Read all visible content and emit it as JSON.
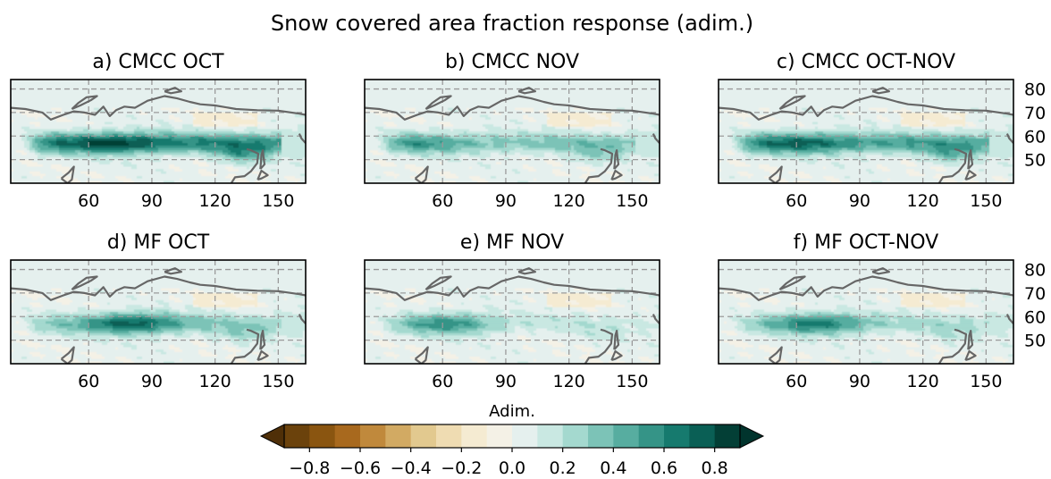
{
  "figure": {
    "title": "Snow covered area fraction response (adim.)"
  },
  "chart_data": {
    "type": "heatmap",
    "variable": "Snow covered area fraction response",
    "units": "adim.",
    "x_ticks": [
      "60",
      "90",
      "120",
      "150"
    ],
    "y_ticks": [
      "80",
      "70",
      "60",
      "50"
    ],
    "lon_range": [
      23,
      163
    ],
    "lat_range": [
      40,
      84
    ],
    "panels": [
      {
        "label": "a) CMCC OCT",
        "peak": 0.85,
        "peak_lon": 72,
        "belt": 0.55
      },
      {
        "label": "b) CMCC NOV",
        "peak": 0.5,
        "peak_lon": 50,
        "belt": 0.3
      },
      {
        "label": "c) CMCC OCT-NOV",
        "peak": 0.72,
        "peak_lon": 62,
        "belt": 0.45
      },
      {
        "label": "d) MF OCT",
        "peak": 0.75,
        "peak_lon": 80,
        "belt": 0.25
      },
      {
        "label": "e) MF NOV",
        "peak": 0.55,
        "peak_lon": 62,
        "belt": 0.12
      },
      {
        "label": "f) MF OCT-NOV",
        "peak": 0.65,
        "peak_lon": 70,
        "belt": 0.18
      }
    ],
    "colorbar": {
      "label": "Adim.",
      "min": -0.9,
      "max": 0.9,
      "step": 0.1,
      "tick_labels": [
        "−0.8",
        "−0.6",
        "−0.4",
        "−0.2",
        "0.0",
        "0.2",
        "0.4",
        "0.6",
        "0.8"
      ],
      "tick_values": [
        -0.8,
        -0.6,
        -0.4,
        -0.2,
        0.0,
        0.2,
        0.4,
        0.6,
        0.8
      ],
      "colors": [
        "#6b420c",
        "#8a5510",
        "#a8691e",
        "#c0893c",
        "#d2aa63",
        "#e2c98f",
        "#efdcb2",
        "#f5ebd2",
        "#f4f1e6",
        "#e5f0ee",
        "#c9e8e2",
        "#a4d9cf",
        "#7cc3b7",
        "#57ada0",
        "#359487",
        "#167a6e",
        "#0a5f55",
        "#033f36"
      ],
      "extend": "both"
    }
  }
}
